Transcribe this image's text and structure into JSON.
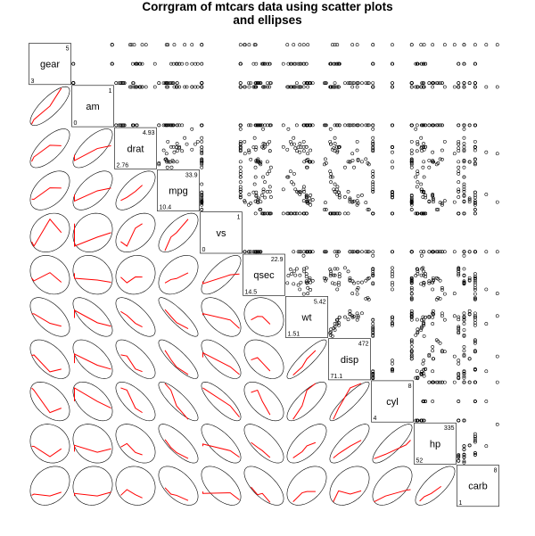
{
  "title_line1": "Corrgram of mtcars data using scatter plots",
  "title_line2": "and ellipses",
  "chart_data": {
    "type": "corrgram",
    "title": "Corrgram of mtcars data using scatter plots and ellipses",
    "variables": [
      "gear",
      "am",
      "drat",
      "mpg",
      "vs",
      "qsec",
      "wt",
      "disp",
      "cyl",
      "hp",
      "carb"
    ],
    "ranges": {
      "gear": [
        3,
        5
      ],
      "am": [
        0,
        1
      ],
      "drat": [
        2.76,
        4.93
      ],
      "mpg": [
        10.4,
        33.9
      ],
      "vs": [
        0,
        1
      ],
      "qsec": [
        14.5,
        22.9
      ],
      "wt": [
        1.51,
        5.42
      ],
      "disp": [
        71.1,
        472
      ],
      "cyl": [
        4,
        8
      ],
      "hp": [
        52,
        335
      ],
      "carb": [
        1,
        8
      ]
    },
    "range_labels": {
      "gear": [
        "3",
        "5"
      ],
      "am": [
        "0",
        "1"
      ],
      "drat": [
        "2.76",
        "4.93"
      ],
      "mpg": [
        "10.4",
        "33.9"
      ],
      "vs": [
        "0",
        "1"
      ],
      "qsec": [
        "14.5",
        "22.9"
      ],
      "wt": [
        "1.51",
        "5.42"
      ],
      "disp": [
        "71.1",
        "472"
      ],
      "cyl": [
        "4",
        "8"
      ],
      "hp": [
        "52",
        "335"
      ],
      "carb": [
        "1",
        "8"
      ]
    },
    "upper_panel": "scatter points",
    "lower_panel": "correlation ellipses with red loess smooth",
    "correlations": [
      [
        1.0,
        0.79,
        0.7,
        0.48,
        0.21,
        -0.21,
        -0.58,
        -0.56,
        -0.49,
        -0.13,
        0.27
      ],
      [
        0.79,
        1.0,
        0.71,
        0.6,
        0.17,
        -0.23,
        -0.69,
        -0.59,
        -0.52,
        -0.24,
        0.06
      ],
      [
        0.7,
        0.71,
        1.0,
        0.68,
        0.44,
        0.09,
        -0.71,
        -0.71,
        -0.7,
        -0.45,
        -0.09
      ],
      [
        0.48,
        0.6,
        0.68,
        1.0,
        0.66,
        0.42,
        -0.87,
        -0.85,
        -0.85,
        -0.78,
        -0.55
      ],
      [
        0.21,
        0.17,
        0.44,
        0.66,
        1.0,
        0.74,
        -0.55,
        -0.71,
        -0.81,
        -0.72,
        -0.57
      ],
      [
        -0.21,
        -0.23,
        0.09,
        0.42,
        0.74,
        1.0,
        -0.17,
        -0.43,
        -0.59,
        -0.71,
        -0.66
      ],
      [
        -0.58,
        -0.69,
        -0.71,
        -0.87,
        -0.55,
        -0.17,
        1.0,
        0.89,
        0.78,
        0.66,
        0.43
      ],
      [
        -0.56,
        -0.59,
        -0.71,
        -0.85,
        -0.71,
        -0.43,
        0.89,
        1.0,
        0.9,
        0.79,
        0.39
      ],
      [
        -0.49,
        -0.52,
        -0.7,
        -0.85,
        -0.81,
        -0.59,
        0.78,
        0.9,
        1.0,
        0.83,
        0.53
      ],
      [
        -0.13,
        -0.24,
        -0.45,
        -0.78,
        -0.72,
        -0.71,
        0.66,
        0.79,
        0.83,
        1.0,
        0.75
      ],
      [
        0.27,
        0.06,
        -0.09,
        -0.55,
        -0.57,
        -0.66,
        0.43,
        0.39,
        0.53,
        0.75,
        1.0
      ]
    ],
    "data": {
      "mpg": [
        21,
        21,
        22.8,
        21.4,
        18.7,
        18.1,
        14.3,
        24.4,
        22.8,
        19.2,
        17.8,
        16.4,
        17.3,
        15.2,
        10.4,
        10.4,
        14.7,
        32.4,
        30.4,
        33.9,
        21.5,
        15.5,
        15.2,
        13.3,
        19.2,
        27.3,
        26,
        30.4,
        15.8,
        19.7,
        15,
        21.4
      ],
      "cyl": [
        6,
        6,
        4,
        6,
        8,
        6,
        8,
        4,
        4,
        6,
        6,
        8,
        8,
        8,
        8,
        8,
        8,
        4,
        4,
        4,
        4,
        8,
        8,
        8,
        8,
        4,
        4,
        4,
        8,
        6,
        8,
        4
      ],
      "disp": [
        160,
        160,
        108,
        258,
        360,
        225,
        360,
        146.7,
        140.8,
        167.6,
        167.6,
        275.8,
        275.8,
        275.8,
        472,
        460,
        440,
        78.7,
        75.7,
        71.1,
        120.1,
        318,
        304,
        350,
        400,
        79,
        120.3,
        95.1,
        351,
        145,
        301,
        121
      ],
      "hp": [
        110,
        110,
        93,
        110,
        175,
        105,
        245,
        62,
        95,
        123,
        123,
        180,
        180,
        180,
        205,
        215,
        230,
        66,
        52,
        65,
        97,
        150,
        150,
        245,
        175,
        66,
        91,
        113,
        264,
        175,
        335,
        109
      ],
      "drat": [
        3.9,
        3.9,
        3.85,
        3.08,
        3.15,
        2.76,
        3.21,
        3.69,
        3.92,
        3.92,
        3.92,
        3.07,
        3.07,
        3.07,
        2.93,
        3,
        3.23,
        4.08,
        4.93,
        4.22,
        3.7,
        2.76,
        3.15,
        3.73,
        3.08,
        4.08,
        4.43,
        3.77,
        4.22,
        3.62,
        3.54,
        4.11
      ],
      "wt": [
        2.62,
        2.875,
        2.32,
        3.215,
        3.44,
        3.46,
        3.57,
        3.19,
        3.15,
        3.44,
        3.44,
        4.07,
        3.73,
        3.78,
        5.25,
        5.424,
        5.345,
        2.2,
        1.615,
        1.835,
        2.465,
        3.52,
        3.435,
        3.84,
        3.845,
        1.935,
        2.14,
        1.513,
        3.17,
        2.77,
        3.57,
        2.78
      ],
      "qsec": [
        16.46,
        17.02,
        18.61,
        19.44,
        17.02,
        20.22,
        15.84,
        20,
        22.9,
        18.3,
        18.9,
        17.4,
        17.6,
        18,
        17.98,
        17.82,
        17.42,
        19.47,
        18.52,
        19.9,
        20.01,
        16.87,
        17.3,
        15.41,
        17.05,
        18.9,
        16.7,
        16.9,
        14.5,
        15.5,
        14.6,
        18.6
      ],
      "vs": [
        0,
        0,
        1,
        1,
        0,
        1,
        0,
        1,
        1,
        1,
        1,
        0,
        0,
        0,
        0,
        0,
        0,
        1,
        1,
        1,
        1,
        0,
        0,
        0,
        0,
        1,
        0,
        1,
        0,
        0,
        0,
        1
      ],
      "am": [
        1,
        1,
        1,
        0,
        0,
        0,
        0,
        0,
        0,
        0,
        0,
        0,
        0,
        0,
        0,
        0,
        0,
        1,
        1,
        1,
        0,
        0,
        0,
        0,
        0,
        1,
        1,
        1,
        1,
        1,
        1,
        1
      ],
      "gear": [
        4,
        4,
        4,
        3,
        3,
        3,
        3,
        4,
        4,
        4,
        4,
        3,
        3,
        3,
        3,
        3,
        3,
        4,
        4,
        4,
        3,
        3,
        3,
        3,
        3,
        4,
        5,
        5,
        5,
        5,
        5,
        4
      ],
      "carb": [
        4,
        4,
        1,
        1,
        2,
        1,
        4,
        2,
        2,
        4,
        4,
        3,
        3,
        3,
        4,
        4,
        4,
        1,
        2,
        1,
        1,
        2,
        2,
        4,
        2,
        1,
        2,
        2,
        4,
        6,
        8,
        2
      ]
    }
  }
}
